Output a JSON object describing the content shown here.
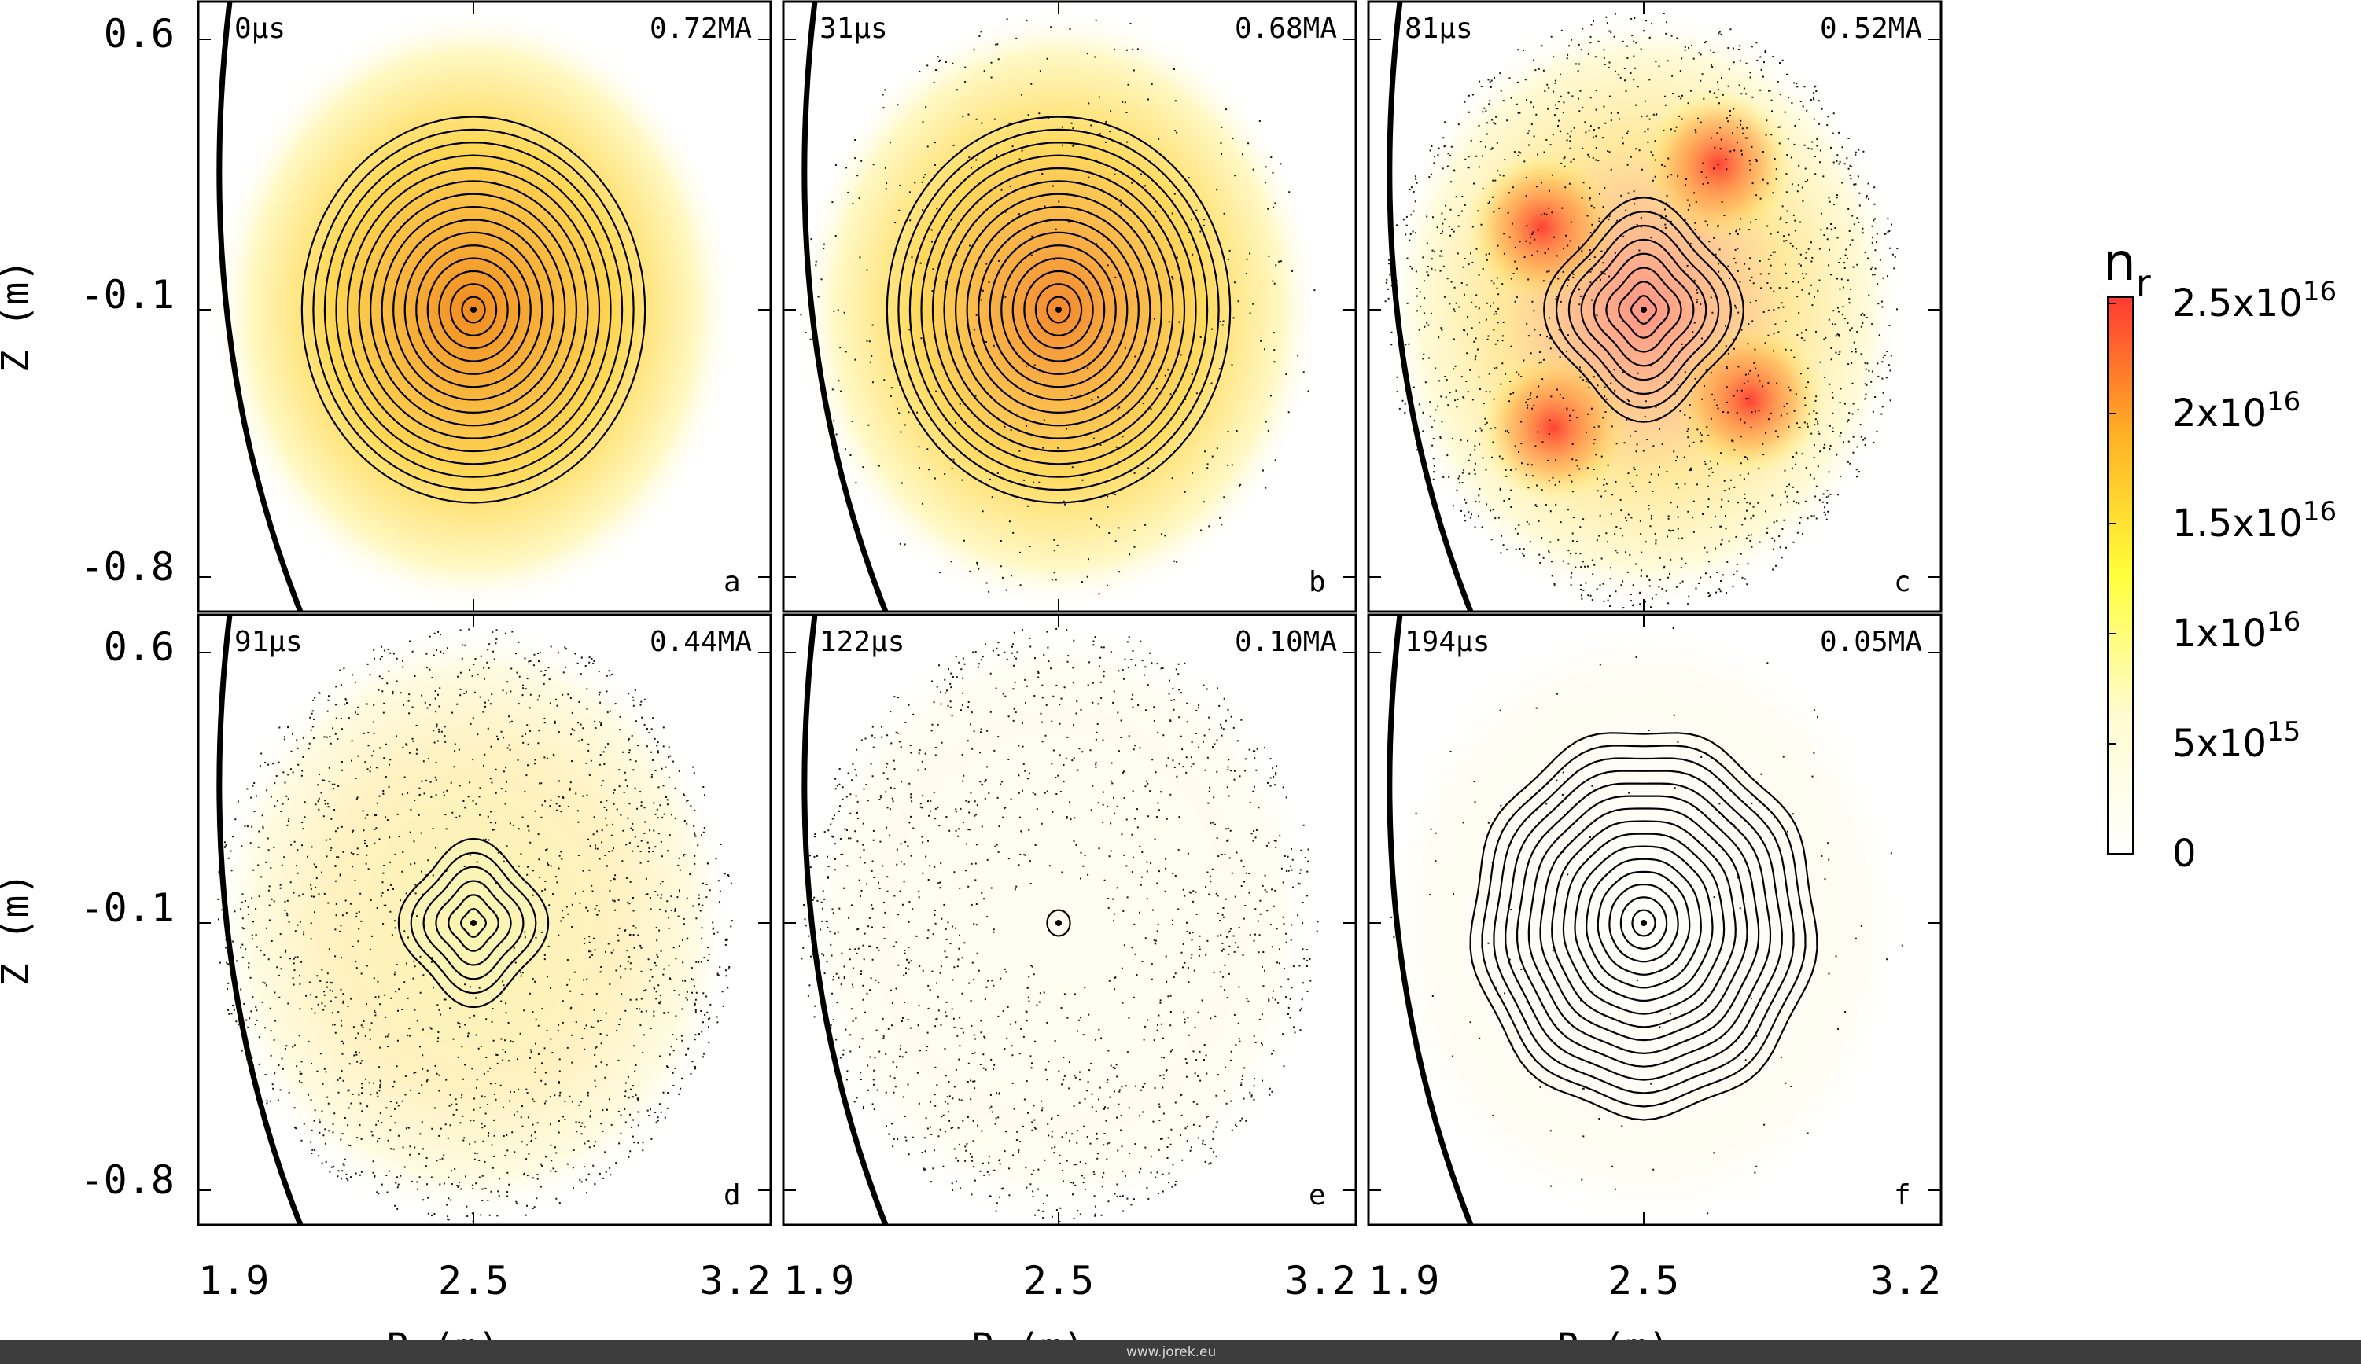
{
  "figure": {
    "axes": {
      "xlabel": "R (m)",
      "ylabel": "Z (m)",
      "xticks": [
        "1.9",
        "2.5",
        "3.2"
      ],
      "yticks": [
        "0.6",
        "-0.1",
        "-0.8"
      ]
    },
    "colorbar": {
      "title": "n",
      "title_sub": "r",
      "ticks": [
        {
          "mant": "2.5x10",
          "exp": "16"
        },
        {
          "mant": "2x10",
          "exp": "16"
        },
        {
          "mant": "1.5x10",
          "exp": "16"
        },
        {
          "mant": "1x10",
          "exp": "16"
        },
        {
          "mant": "5x10",
          "exp": "15"
        },
        {
          "mant": "0",
          "exp": ""
        }
      ],
      "colors": [
        "#ffffff",
        "#fffbd0",
        "#ffff3a",
        "#ffb225",
        "#ff3a33"
      ]
    },
    "panels": [
      {
        "letter": "a",
        "time": "0µs",
        "current": "0.72MA",
        "intensity": 0.95,
        "peak": "#f08a20",
        "rmax": 0.72,
        "noise": 0.0
      },
      {
        "letter": "b",
        "time": "31µs",
        "current": "0.68MA",
        "intensity": 0.9,
        "peak": "#f28224",
        "rmax": 0.72,
        "noise": 0.2
      },
      {
        "letter": "c",
        "time": "81µs",
        "current": "0.52MA",
        "intensity": 0.55,
        "peak": "#ff4a33",
        "rmax": 0.4,
        "noise": 0.85
      },
      {
        "letter": "d",
        "time": "91µs",
        "current": "0.44MA",
        "intensity": 0.35,
        "peak": "#f4e83a",
        "rmax": 0.3,
        "noise": 0.9
      },
      {
        "letter": "e",
        "time": "122µs",
        "current": "0.10MA",
        "intensity": 0.08,
        "peak": "#fff6a0",
        "rmax": 0.05,
        "noise": 0.75
      },
      {
        "letter": "f",
        "time": "194µs",
        "current": "0.05MA",
        "intensity": 0.05,
        "peak": "#fffbe0",
        "rmax": 0.7,
        "noise": 0.05
      }
    ],
    "footer": "www.jorek.eu"
  }
}
